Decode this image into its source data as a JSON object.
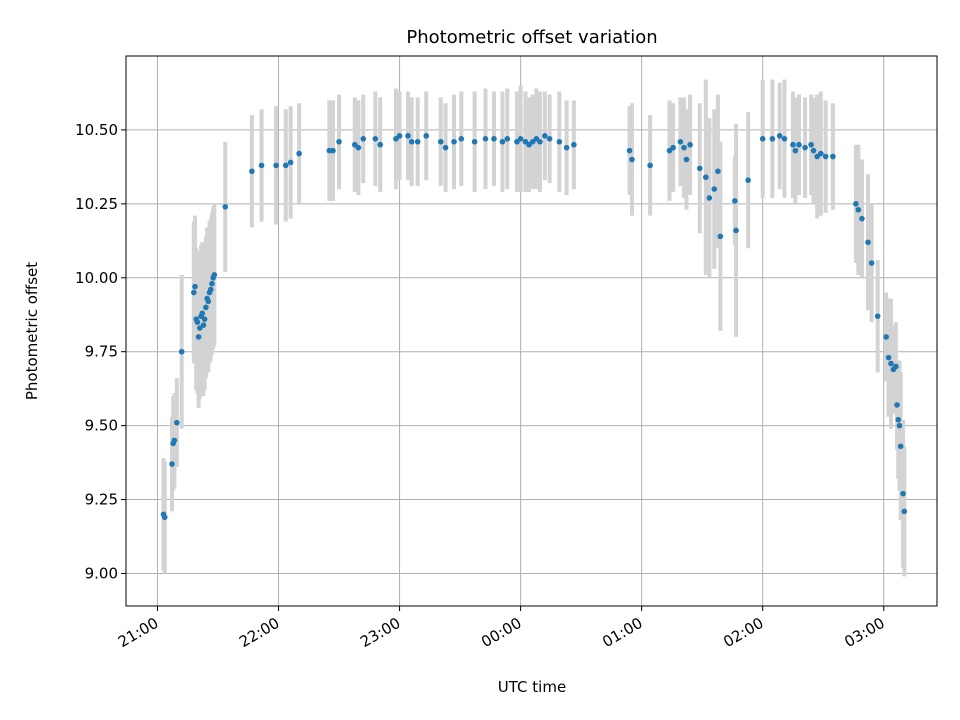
{
  "chart_data": {
    "type": "scatter",
    "title": "Photometric offset variation",
    "xlabel": "UTC time",
    "ylabel": "Photometric offset",
    "x_unit": "hours after 21:00 UTC",
    "xlim": [
      -0.26,
      6.44
    ],
    "ylim": [
      8.89,
      10.75
    ],
    "x_ticks": [
      {
        "value": 0,
        "label": "21:00"
      },
      {
        "value": 1,
        "label": "22:00"
      },
      {
        "value": 2,
        "label": "23:00"
      },
      {
        "value": 3,
        "label": "00:00"
      },
      {
        "value": 4,
        "label": "01:00"
      },
      {
        "value": 5,
        "label": "02:00"
      },
      {
        "value": 6,
        "label": "03:00"
      }
    ],
    "y_ticks": [
      {
        "value": 9.0,
        "label": "9.00"
      },
      {
        "value": 9.25,
        "label": "9.25"
      },
      {
        "value": 9.5,
        "label": "9.50"
      },
      {
        "value": 9.75,
        "label": "9.75"
      },
      {
        "value": 10.0,
        "label": "10.00"
      },
      {
        "value": 10.25,
        "label": "10.25"
      },
      {
        "value": 10.5,
        "label": "10.50"
      }
    ],
    "grid": true,
    "colors": {
      "points": "#1f77b4",
      "errorbars": "#d3d3d3",
      "grid": "#b0b0b0"
    },
    "series": [
      {
        "x": [
          0.05,
          0.06,
          0.12,
          0.13,
          0.14,
          0.16,
          0.2,
          0.3,
          0.31,
          0.32,
          0.33,
          0.34,
          0.35,
          0.36,
          0.37,
          0.38,
          0.39,
          0.4,
          0.41,
          0.42,
          0.43,
          0.44,
          0.45,
          0.46,
          0.47,
          0.56,
          0.78,
          0.86,
          0.98,
          1.06,
          1.1,
          1.17,
          1.42,
          1.45,
          1.5,
          1.63,
          1.66,
          1.7,
          1.8,
          1.84,
          1.97,
          2.0,
          2.07,
          2.1,
          2.15,
          2.22,
          2.34,
          2.38,
          2.45,
          2.51,
          2.62,
          2.71,
          2.78,
          2.85,
          2.89,
          2.97,
          3.0,
          3.04,
          3.07,
          3.1,
          3.13,
          3.16,
          3.2,
          3.24,
          3.32,
          3.38,
          3.44,
          3.9,
          3.92,
          4.07,
          4.23,
          4.26,
          4.32,
          4.35,
          4.37,
          4.4,
          4.48,
          4.53,
          4.56,
          4.6,
          4.63,
          4.65,
          4.77,
          4.78,
          4.88,
          5.0,
          5.08,
          5.14,
          5.18,
          5.25,
          5.27,
          5.3,
          5.35,
          5.4,
          5.42,
          5.45,
          5.48,
          5.52,
          5.58,
          5.77,
          5.79,
          5.82,
          5.87,
          5.9,
          5.95,
          6.02,
          6.04,
          6.06,
          6.08,
          6.1,
          6.11,
          6.12,
          6.13,
          6.14,
          6.16,
          6.17
        ],
        "y": [
          9.2,
          9.19,
          9.37,
          9.44,
          9.45,
          9.51,
          9.75,
          9.95,
          9.97,
          9.86,
          9.85,
          9.8,
          9.83,
          9.87,
          9.88,
          9.84,
          9.86,
          9.9,
          9.93,
          9.92,
          9.95,
          9.96,
          9.98,
          10.0,
          10.01,
          10.24,
          10.36,
          10.38,
          10.38,
          10.38,
          10.39,
          10.42,
          10.43,
          10.43,
          10.46,
          10.45,
          10.44,
          10.47,
          10.47,
          10.45,
          10.47,
          10.48,
          10.48,
          10.46,
          10.46,
          10.48,
          10.46,
          10.44,
          10.46,
          10.47,
          10.46,
          10.47,
          10.47,
          10.46,
          10.47,
          10.46,
          10.47,
          10.46,
          10.45,
          10.46,
          10.47,
          10.46,
          10.48,
          10.47,
          10.46,
          10.44,
          10.45,
          10.43,
          10.4,
          10.38,
          10.43,
          10.44,
          10.46,
          10.44,
          10.4,
          10.45,
          10.37,
          10.34,
          10.27,
          10.3,
          10.36,
          10.14,
          10.26,
          10.16,
          10.33,
          10.47,
          10.47,
          10.48,
          10.47,
          10.45,
          10.43,
          10.45,
          10.44,
          10.45,
          10.43,
          10.41,
          10.42,
          10.41,
          10.41,
          10.25,
          10.23,
          10.2,
          10.12,
          10.05,
          9.87,
          9.8,
          9.73,
          9.71,
          9.69,
          9.7,
          9.57,
          9.52,
          9.5,
          9.43,
          9.27,
          9.21
        ],
        "yerr": [
          0.19,
          0.19,
          0.16,
          0.16,
          0.16,
          0.15,
          0.26,
          0.24,
          0.24,
          0.24,
          0.24,
          0.24,
          0.24,
          0.24,
          0.24,
          0.24,
          0.24,
          0.24,
          0.24,
          0.24,
          0.24,
          0.24,
          0.24,
          0.24,
          0.24,
          0.22,
          0.19,
          0.19,
          0.2,
          0.19,
          0.19,
          0.17,
          0.17,
          0.17,
          0.16,
          0.16,
          0.16,
          0.15,
          0.16,
          0.16,
          0.17,
          0.15,
          0.15,
          0.15,
          0.15,
          0.15,
          0.15,
          0.15,
          0.16,
          0.16,
          0.17,
          0.17,
          0.16,
          0.17,
          0.17,
          0.17,
          0.18,
          0.17,
          0.16,
          0.16,
          0.17,
          0.17,
          0.15,
          0.15,
          0.17,
          0.16,
          0.15,
          0.15,
          0.19,
          0.17,
          0.17,
          0.15,
          0.15,
          0.17,
          0.17,
          0.17,
          0.22,
          0.33,
          0.27,
          0.27,
          0.26,
          0.32,
          0.15,
          0.36,
          0.23,
          0.2,
          0.2,
          0.18,
          0.2,
          0.18,
          0.18,
          0.17,
          0.17,
          0.17,
          0.18,
          0.21,
          0.21,
          0.19,
          0.18,
          0.2,
          0.22,
          0.2,
          0.23,
          0.2,
          0.19,
          0.15,
          0.2,
          0.22,
          0.15,
          0.15,
          0.15,
          0.2,
          0.22,
          0.25,
          0.25,
          0.22
        ]
      }
    ]
  }
}
